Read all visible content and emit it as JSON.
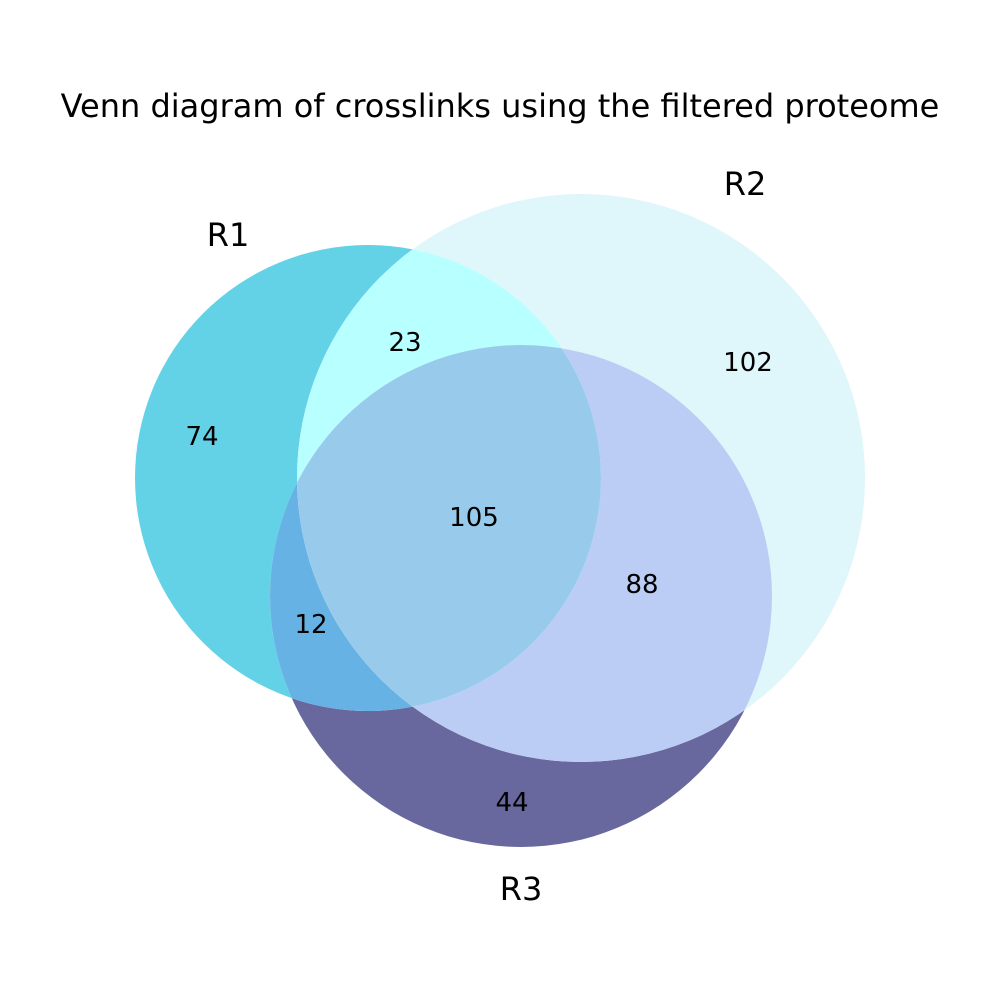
{
  "title": "Venn diagram of crosslinks using the filtered proteome",
  "sets": [
    {
      "id": "R1",
      "label": "R1"
    },
    {
      "id": "R2",
      "label": "R2"
    },
    {
      "id": "R3",
      "label": "R3"
    }
  ],
  "regions": {
    "r1_only": "74",
    "r2_only": "102",
    "r3_only": "44",
    "r1_r2": "23",
    "r1_r3": "12",
    "r2_r3": "88",
    "r1_r2_r3": "105"
  },
  "colors": {
    "r1_only": "#64d2e6",
    "r2_only": "#dff6fa",
    "r3_only": "#69689e",
    "r1_r2": "#b8ffff",
    "r1_r3": "#67b2e5",
    "r2_r3": "#bbcdf5",
    "r1_r2_r3": "#98cbeb"
  }
}
